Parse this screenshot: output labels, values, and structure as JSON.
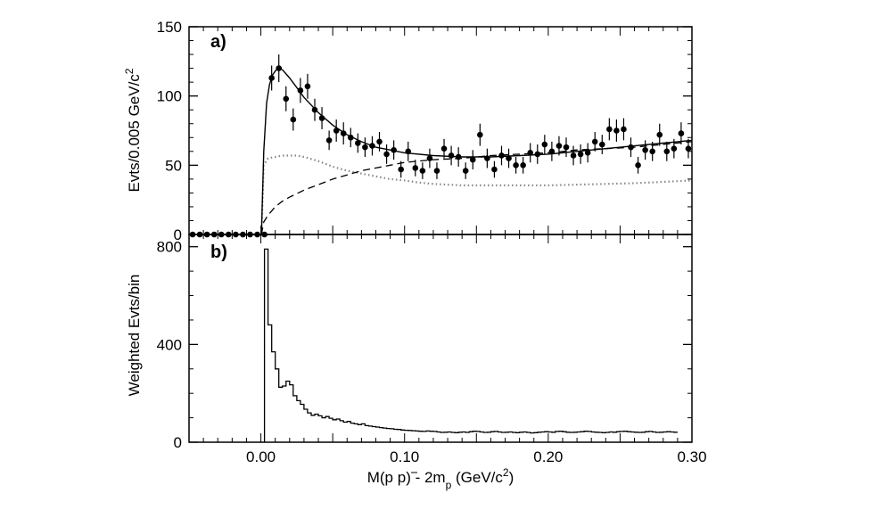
{
  "chart_data": [
    {
      "panel": "a)",
      "type": "scatter",
      "ylabel": "Evts/0.005 GeV/c",
      "ylabel_sup": "2",
      "xlim": [
        -0.05,
        0.3
      ],
      "ylim": [
        0,
        150
      ],
      "yticks": [
        "0",
        "50",
        "100",
        "150"
      ],
      "points": {
        "x": [
          -0.0475,
          -0.0425,
          -0.0375,
          -0.0325,
          -0.0275,
          -0.0225,
          -0.0175,
          -0.0125,
          -0.0075,
          -0.0025,
          0.0025,
          0.0075,
          0.0125,
          0.0175,
          0.0225,
          0.0275,
          0.0325,
          0.0375,
          0.0425,
          0.0475,
          0.0525,
          0.0575,
          0.0625,
          0.0675,
          0.0725,
          0.0775,
          0.0825,
          0.0875,
          0.0925,
          0.0975,
          0.1025,
          0.1075,
          0.1125,
          0.1175,
          0.1225,
          0.1275,
          0.1325,
          0.1375,
          0.1425,
          0.1475,
          0.1525,
          0.1575,
          0.1625,
          0.1675,
          0.1725,
          0.1775,
          0.1825,
          0.1875,
          0.1925,
          0.1975,
          0.2025,
          0.2075,
          0.2125,
          0.2175,
          0.2225,
          0.2275,
          0.2325,
          0.2375,
          0.2425,
          0.2475,
          0.2525,
          0.2575,
          0.2625,
          0.2675,
          0.2725,
          0.2775,
          0.2825,
          0.2875,
          0.2925,
          0.2975
        ],
        "y": [
          0,
          0,
          0,
          0,
          0,
          0,
          0,
          0,
          0,
          0,
          0,
          113,
          120,
          98,
          83,
          104,
          107,
          90,
          84,
          68,
          75,
          73,
          70,
          66,
          63,
          64,
          67,
          58,
          61,
          47,
          60,
          48,
          46,
          55,
          46,
          62,
          57,
          56,
          46,
          54,
          72,
          55,
          47,
          57,
          55,
          50,
          50,
          59,
          58,
          65,
          60,
          64,
          63,
          57,
          58,
          59,
          67,
          65,
          76,
          75,
          76,
          63,
          50,
          61,
          60,
          72,
          60,
          62,
          73,
          62
        ],
        "yerr": [
          0,
          0,
          0,
          0,
          0,
          0,
          0,
          0,
          0,
          0,
          0,
          9,
          10,
          9,
          8,
          9,
          9,
          8,
          8,
          7,
          8,
          8,
          7,
          7,
          7,
          7,
          7,
          7,
          7,
          6,
          7,
          6,
          6,
          7,
          6,
          7,
          7,
          7,
          6,
          7,
          8,
          7,
          6,
          7,
          7,
          6,
          6,
          7,
          7,
          7,
          7,
          7,
          7,
          7,
          7,
          7,
          7,
          7,
          8,
          8,
          8,
          7,
          6,
          7,
          7,
          8,
          7,
          7,
          8,
          7
        ]
      },
      "fit_total": {
        "x": [
          0.0004,
          0.002,
          0.004,
          0.006,
          0.008,
          0.01,
          0.012,
          0.015,
          0.02,
          0.025,
          0.03,
          0.04,
          0.05,
          0.06,
          0.07,
          0.08,
          0.1,
          0.12,
          0.14,
          0.16,
          0.18,
          0.2,
          0.22,
          0.24,
          0.26,
          0.28,
          0.3
        ],
        "y": [
          0,
          60,
          95,
          108,
          115,
          118,
          120,
          119,
          113,
          106,
          99,
          88,
          79,
          72,
          67,
          63,
          59,
          57,
          56,
          56,
          57,
          58,
          60,
          62,
          64,
          66,
          68
        ]
      },
      "fit_background": {
        "x": [
          0.0004,
          0.002,
          0.005,
          0.01,
          0.015,
          0.02,
          0.03,
          0.04,
          0.05,
          0.06,
          0.07,
          0.08,
          0.09,
          0.1,
          0.12,
          0.14,
          0.16,
          0.18,
          0.2,
          0.22,
          0.24,
          0.26,
          0.28,
          0.3
        ],
        "y": [
          0,
          9,
          14,
          20,
          24,
          27,
          32,
          36,
          40,
          43,
          46,
          48,
          50,
          52,
          54,
          55,
          57,
          58,
          59,
          61,
          62,
          63,
          65,
          67
        ]
      },
      "fit_signal": {
        "x": [
          0.0004,
          0.002,
          0.005,
          0.01,
          0.015,
          0.02,
          0.025,
          0.03,
          0.04,
          0.05,
          0.06,
          0.07,
          0.08,
          0.09,
          0.1,
          0.11,
          0.12,
          0.13,
          0.14,
          0.16,
          0.18,
          0.2,
          0.22,
          0.24,
          0.26,
          0.28,
          0.3
        ],
        "y": [
          0,
          50,
          55,
          56,
          57,
          57,
          57,
          56,
          53,
          49,
          46,
          44,
          42,
          40,
          39,
          37.5,
          36.5,
          36,
          35.5,
          35.5,
          35.5,
          35.5,
          36,
          36.5,
          37,
          38,
          39
        ]
      }
    },
    {
      "panel": "b)",
      "type": "bar",
      "ylabel": "Weighted Evts/bin",
      "xlabel_parts": [
        "M(p ",
        "p",
        ") - 2m",
        "p",
        " (GeV/c",
        "2",
        ")"
      ],
      "xlim": [
        -0.05,
        0.3
      ],
      "ylim": [
        0,
        850
      ],
      "yticks": [
        "0",
        "400",
        "800"
      ],
      "xticks": [
        "0.00",
        "0.10",
        "0.20",
        "0.30"
      ],
      "bin_edges_start": 0.0025,
      "bin_width": 0.0025,
      "values": [
        790,
        480,
        370,
        300,
        225,
        230,
        250,
        235,
        190,
        170,
        155,
        135,
        120,
        110,
        115,
        108,
        100,
        105,
        98,
        92,
        95,
        88,
        82,
        85,
        78,
        75,
        72,
        75,
        68,
        66,
        64,
        62,
        60,
        58,
        56,
        55,
        53,
        52,
        50,
        49,
        48,
        47,
        46,
        45,
        44,
        46,
        45,
        44,
        42,
        40,
        41,
        42,
        40,
        39,
        41,
        42,
        40,
        43,
        45,
        44,
        42,
        40,
        41,
        43,
        44,
        42,
        40,
        41,
        42,
        40,
        39,
        41,
        42,
        40,
        38,
        39,
        41,
        42,
        43,
        42,
        41,
        44,
        45,
        43,
        41,
        40,
        41,
        42,
        43,
        45,
        44,
        42,
        41,
        40,
        39,
        40,
        42,
        41,
        43,
        44,
        45,
        43,
        42,
        41,
        40,
        41,
        43,
        44,
        42,
        40,
        41,
        42,
        43,
        42,
        41
      ]
    }
  ]
}
